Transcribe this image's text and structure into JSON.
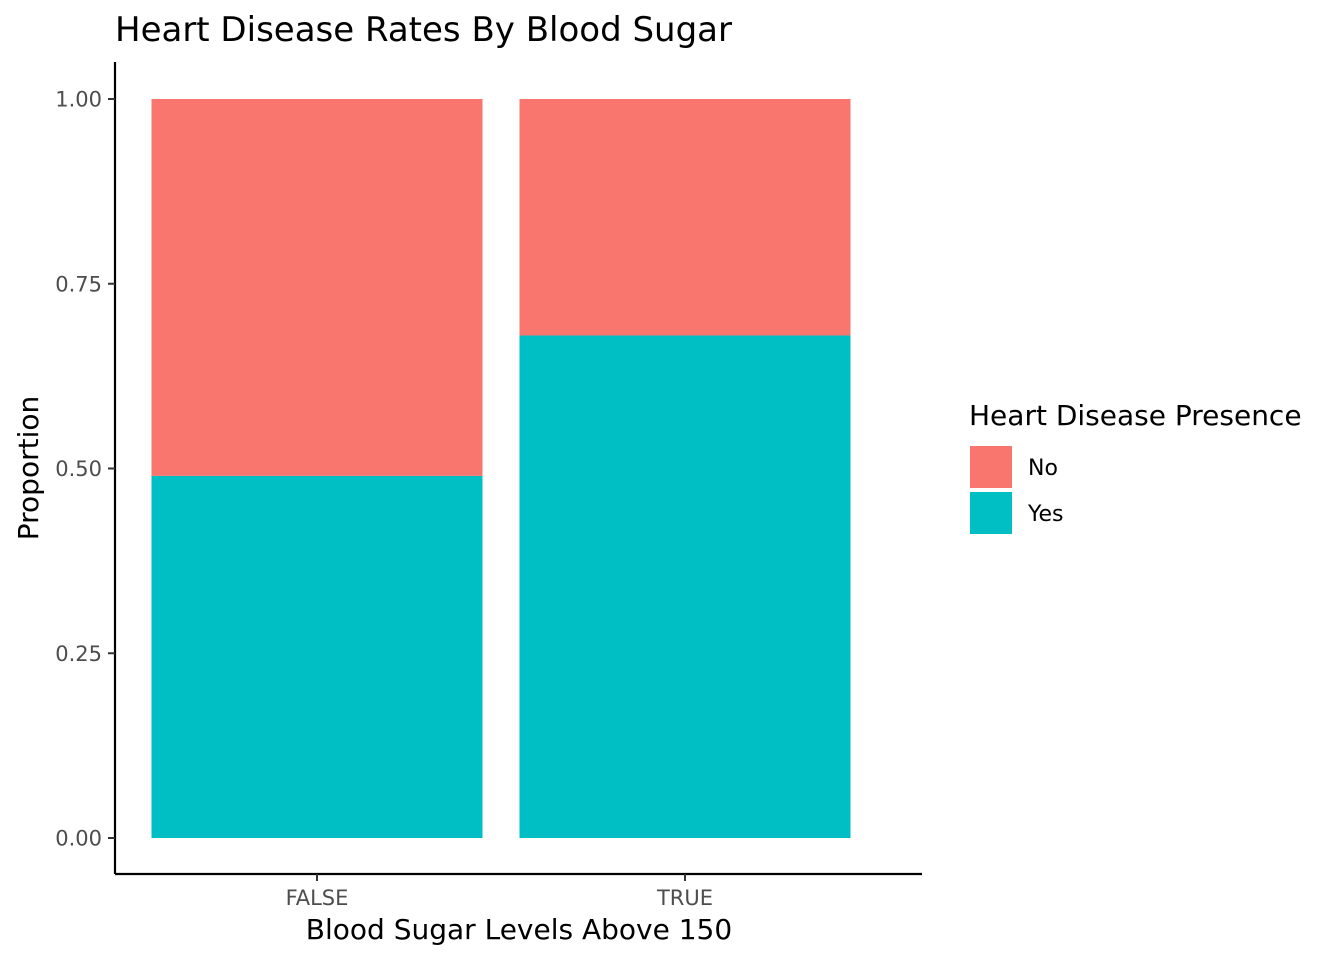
{
  "chart_data": {
    "type": "bar",
    "stacked": true,
    "title": "Heart Disease Rates By Blood Sugar",
    "xlabel": "Blood Sugar Levels Above 150",
    "ylabel": "Proportion",
    "categories": [
      "FALSE",
      "TRUE"
    ],
    "series": [
      {
        "name": "Yes",
        "values": [
          0.49,
          0.68
        ],
        "color": "#00BFC4"
      },
      {
        "name": "No",
        "values": [
          0.51,
          0.32
        ],
        "color": "#F8766D"
      }
    ],
    "ylim": [
      0,
      1
    ],
    "yticks": [
      "0.00",
      "0.25",
      "0.50",
      "0.75",
      "1.00"
    ],
    "grid": false,
    "legend": {
      "title": "Heart Disease Presence",
      "placement": "right",
      "items": [
        {
          "label": "No",
          "color": "#F8766D"
        },
        {
          "label": "Yes",
          "color": "#00BFC4"
        }
      ]
    }
  }
}
